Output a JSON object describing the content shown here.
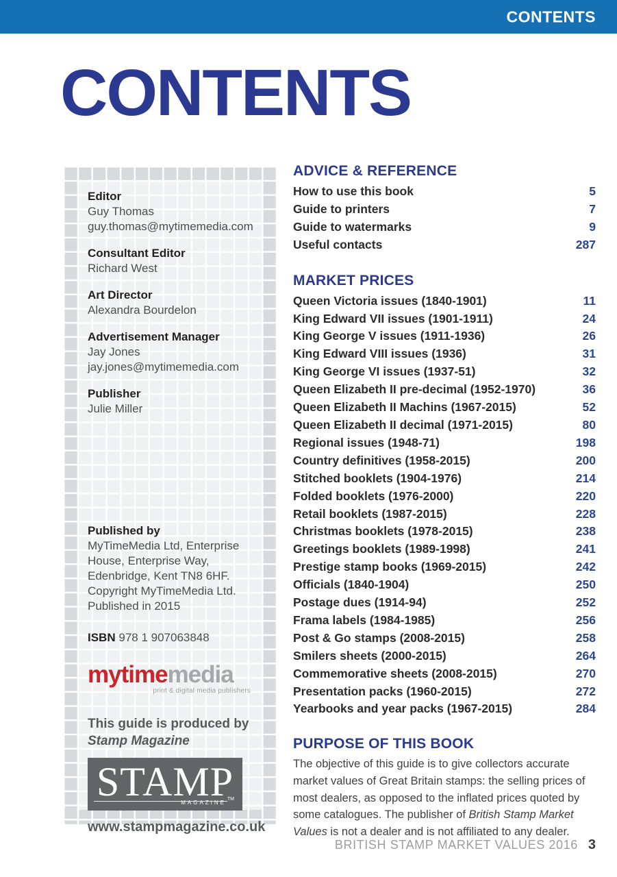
{
  "header": {
    "bar_label": "CONTENTS"
  },
  "title": "CONTENTS",
  "sidebar": {
    "staff": [
      {
        "role": "Editor",
        "lines": [
          "Guy Thomas",
          "guy.thomas@mytimemedia.com"
        ]
      },
      {
        "role": "Consultant Editor",
        "lines": [
          "Richard West"
        ]
      },
      {
        "role": "Art Director",
        "lines": [
          "Alexandra Bourdelon"
        ]
      },
      {
        "role": "Advertisement Manager",
        "lines": [
          "Jay Jones",
          "jay.jones@mytimemedia.com"
        ]
      },
      {
        "role": "Publisher",
        "lines": [
          "Julie Miller"
        ]
      }
    ],
    "published_by": {
      "label": "Published by",
      "lines": [
        "MyTimeMedia Ltd, Enterprise",
        "House, Enterprise Way,",
        "Edenbridge, Kent TN8 6HF.",
        "Copyright MyTimeMedia Ltd.",
        "Published in 2015"
      ]
    },
    "isbn_label": "ISBN",
    "isbn_value": "978 1 907063848",
    "mytimemedia_logo": {
      "part1": "mytime",
      "part2": "media",
      "tagline": "print & digital media publishers"
    },
    "produced_by_line1": "This guide is produced by",
    "produced_by_line2": "Stamp Magazine",
    "stamp_logo": {
      "word": "STAMP",
      "subtitle": "MAGAZINE",
      "tm": "TM"
    },
    "website": "www.stampmagazine.co.uk"
  },
  "toc": {
    "sections": [
      {
        "heading": "ADVICE & REFERENCE",
        "items": [
          {
            "label": "How to use this book",
            "page": "5"
          },
          {
            "label": "Guide to printers",
            "page": "7"
          },
          {
            "label": "Guide to watermarks",
            "page": "9"
          },
          {
            "label": "Useful contacts",
            "page": "287"
          }
        ]
      },
      {
        "heading": "MARKET PRICES",
        "items": [
          {
            "label": "Queen Victoria issues (1840-1901)",
            "page": "11"
          },
          {
            "label": "King Edward VII issues (1901-1911)",
            "page": "24"
          },
          {
            "label": "King George V issues (1911-1936)",
            "page": "26"
          },
          {
            "label": "King Edward VIII issues (1936)",
            "page": "31"
          },
          {
            "label": "King George VI issues (1937-51)",
            "page": "32"
          },
          {
            "label": "Queen Elizabeth II pre-decimal (1952-1970)",
            "page": "36"
          },
          {
            "label": "Queen Elizabeth II Machins (1967-2015)",
            "page": "52"
          },
          {
            "label": "Queen Elizabeth II decimal (1971-2015)",
            "page": "80"
          },
          {
            "label": "Regional issues (1948-71)",
            "page": "198"
          },
          {
            "label": "Country definitives (1958-2015)",
            "page": "200"
          },
          {
            "label": "Stitched booklets (1904-1976)",
            "page": "214"
          },
          {
            "label": "Folded booklets (1976-2000)",
            "page": "220"
          },
          {
            "label": "Retail booklets (1987-2015)",
            "page": "228"
          },
          {
            "label": "Christmas booklets (1978-2015)",
            "page": "238"
          },
          {
            "label": "Greetings booklets (1989-1998)",
            "page": "241"
          },
          {
            "label": "Prestige stamp books (1969-2015)",
            "page": "242"
          },
          {
            "label": "Officials (1840-1904)",
            "page": "250"
          },
          {
            "label": "Postage dues (1914-94)",
            "page": "252"
          },
          {
            "label": "Frama labels (1984-1985)",
            "page": "256"
          },
          {
            "label": "Post & Go stamps (2008-2015)",
            "page": "258"
          },
          {
            "label": "Smilers sheets (2000-2015)",
            "page": "264"
          },
          {
            "label": "Commemorative sheets (2008-2015)",
            "page": "270"
          },
          {
            "label": "Presentation packs (1960-2015)",
            "page": "272"
          },
          {
            "label": "Yearbooks and year packs (1967-2015)",
            "page": "284"
          }
        ]
      }
    ]
  },
  "purpose": {
    "heading": "PURPOSE OF THIS BOOK",
    "text_before_italic": "The objective of this guide is to give collectors accurate market values of Great Britain stamps: the selling prices of most dealers, as opposed to the inflated prices quoted by some catalogues. The publisher of ",
    "italic_text": "British Stamp Market Values",
    "text_after_italic": " is not a dealer and is not affiliated to any dealer."
  },
  "footer": {
    "label": "BRITISH STAMP MARKET VALUES 2016",
    "page_number": "3"
  },
  "colors": {
    "top_bar_blue": "#1571b4",
    "title_navy": "#2b3990",
    "heading_blue": "#2b3a8c",
    "page_number_blue": "#2b4590",
    "logo_red": "#c9252c",
    "logo_gray": "#a6a8ab",
    "stamp_box_gray": "#636466"
  }
}
